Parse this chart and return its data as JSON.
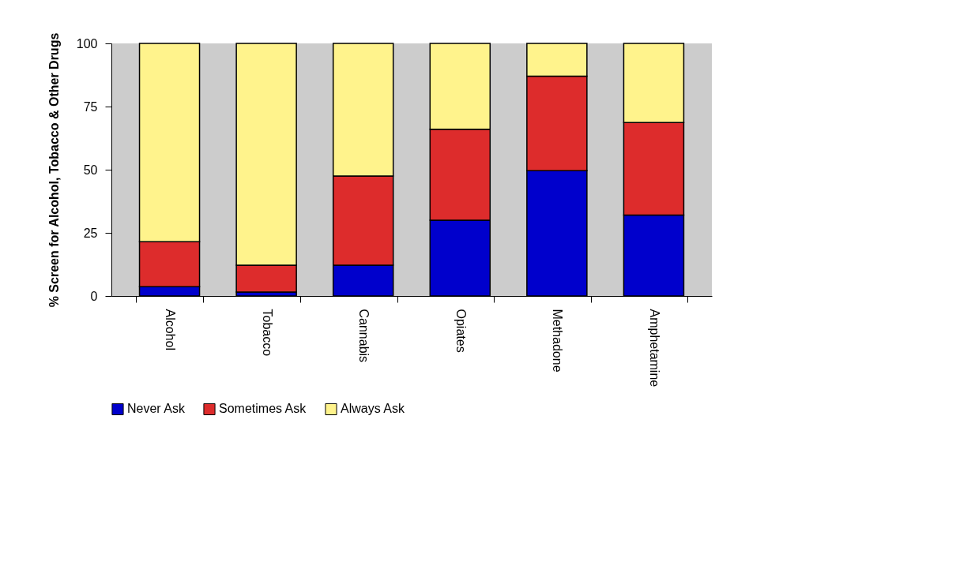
{
  "chart_data": {
    "type": "bar",
    "stacked": true,
    "ylabel": "% Screen for Alcohol, Tobacco & Other Drugs",
    "categories": [
      "Alcohol",
      "Tobacco",
      "Cannabis",
      "Opiates",
      "Methadone",
      "Amphetamine"
    ],
    "series": [
      {
        "name": "Never Ask",
        "color": "#0000cc",
        "values": [
          3.7,
          1.6,
          12.2,
          30,
          49.6,
          32
        ]
      },
      {
        "name": "Sometimes Ask",
        "color": "#dd2c2c",
        "values": [
          17.8,
          10.6,
          35.3,
          36,
          37.4,
          36.7
        ]
      },
      {
        "name": "Always Ask",
        "color": "#fff38c",
        "values": [
          78.5,
          87.8,
          52.5,
          34,
          13,
          31.3
        ]
      }
    ],
    "ylim": [
      0,
      100
    ],
    "yticks": [
      0,
      25,
      50,
      75,
      100
    ],
    "grid": false,
    "legend": "bottom"
  }
}
